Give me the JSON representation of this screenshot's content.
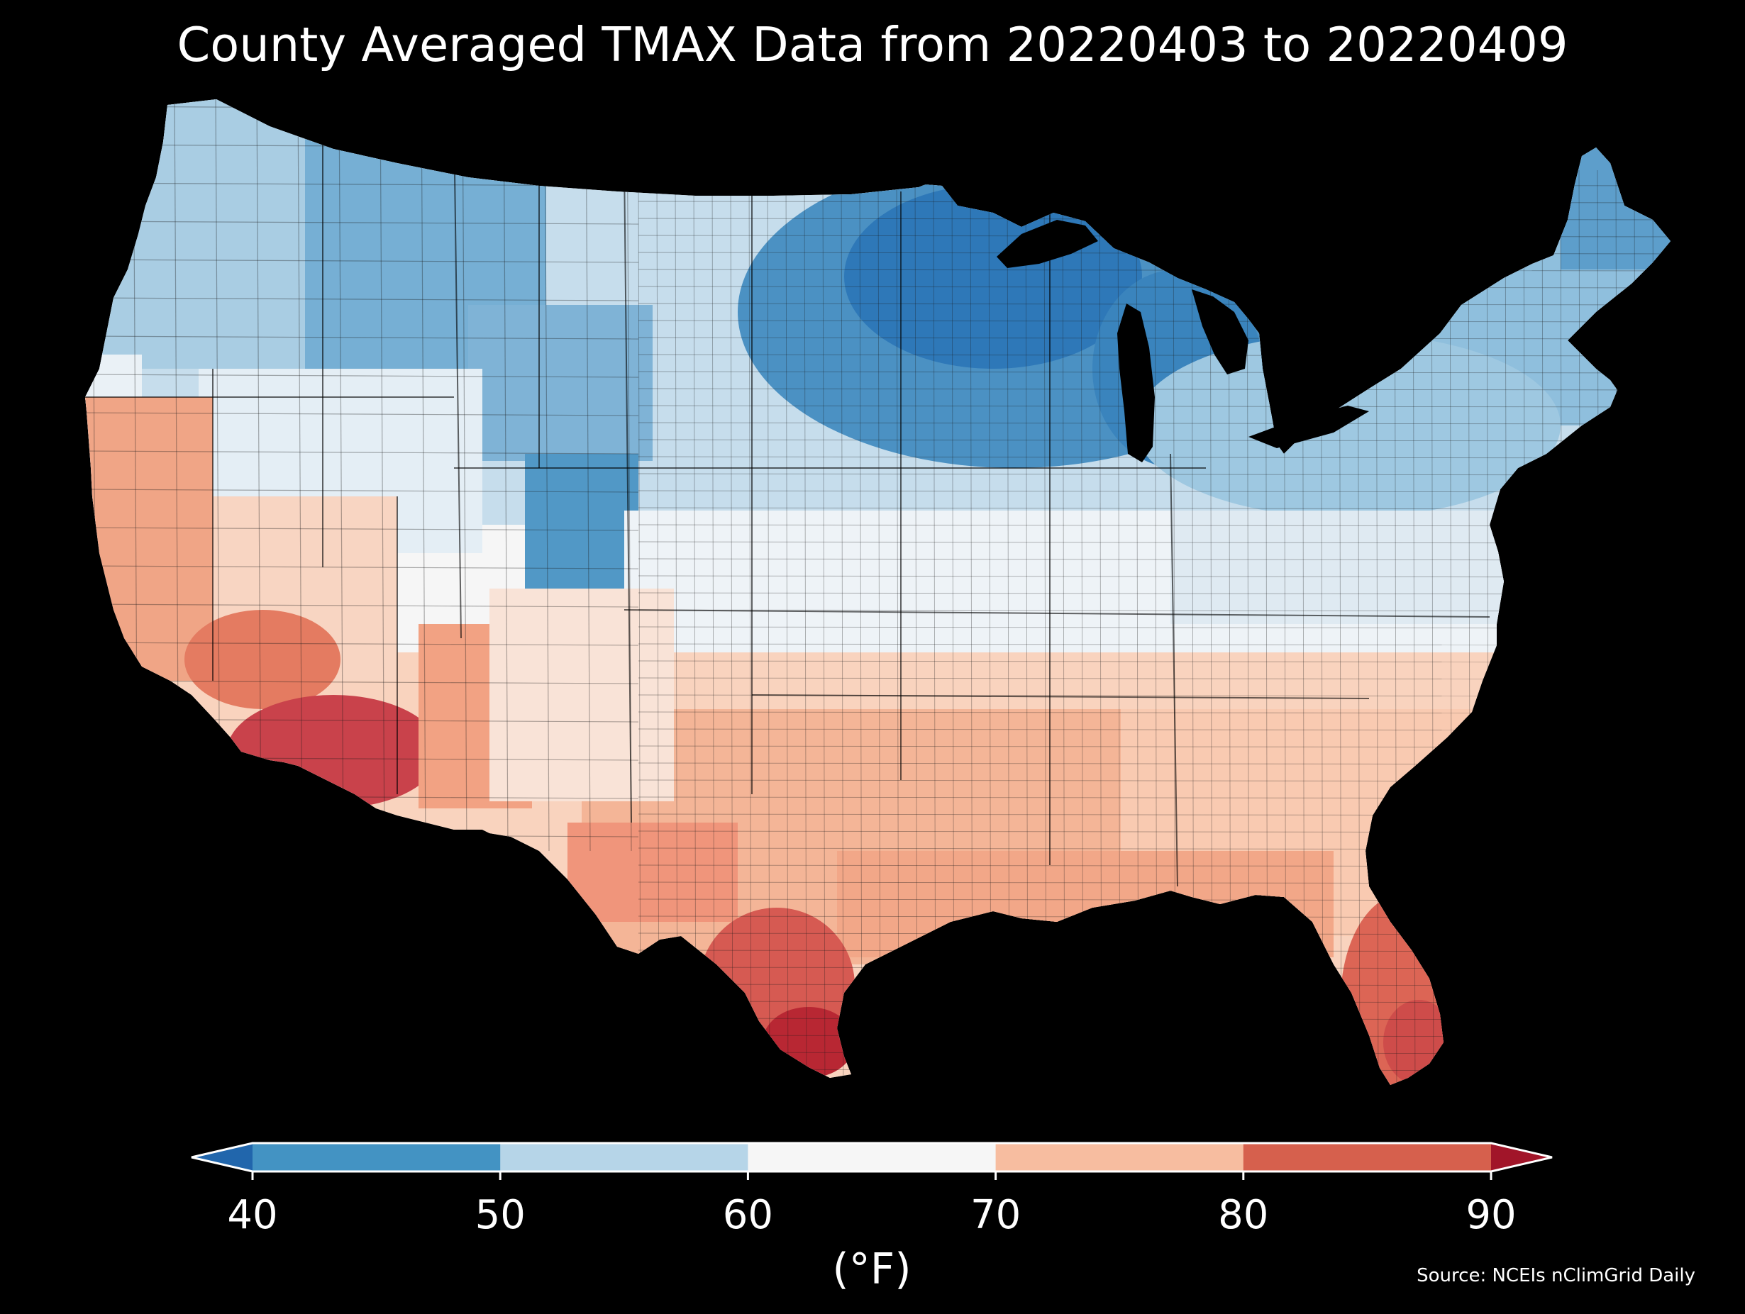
{
  "title": "County Averaged TMAX Data from 20220403 to 20220409",
  "source": "Source: NCEIs nClimGrid Daily",
  "colorbar": {
    "unit": "(°F)",
    "ticks": [
      "40",
      "50",
      "60",
      "70",
      "80",
      "90"
    ],
    "bins": [
      {
        "from": null,
        "to": 40,
        "color": "#2166ac"
      },
      {
        "from": 40,
        "to": 50,
        "color": "#4393c3"
      },
      {
        "from": 50,
        "to": 60,
        "color": "#b6d5e8"
      },
      {
        "from": 60,
        "to": 70,
        "color": "#f6f6f6"
      },
      {
        "from": 70,
        "to": 80,
        "color": "#f7bda0"
      },
      {
        "from": 80,
        "to": 90,
        "color": "#d6604d"
      },
      {
        "from": 90,
        "to": null,
        "color": "#a11529"
      }
    ],
    "extend": "both"
  },
  "map": {
    "region": "Contiguous United States",
    "unit_of_aggregation": "county",
    "variable": "TMAX",
    "background_color": "#000000",
    "scheme": "RdBu_r",
    "legend_placement": "bottom"
  }
}
